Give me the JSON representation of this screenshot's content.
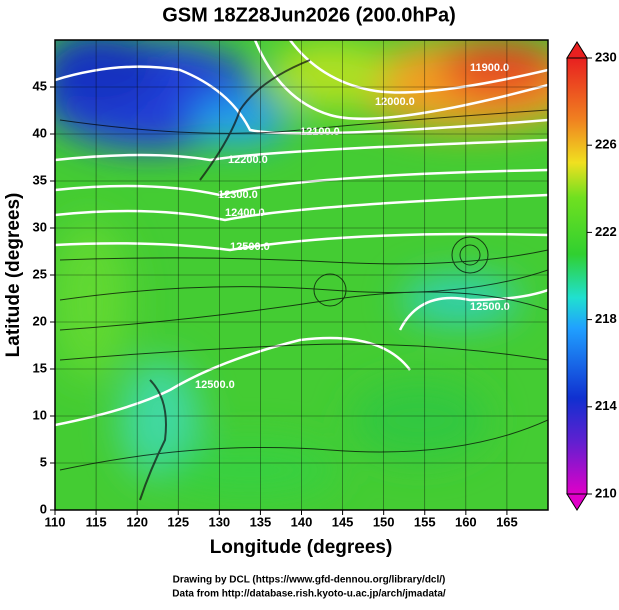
{
  "chart_data": {
    "type": "map",
    "title": "GSM 18Z28Jun2026 (200.0hPa)",
    "x_label": "Longitude (degrees)",
    "y_label": "Latitude  (degrees)",
    "xlim": [
      110,
      170
    ],
    "xticks": [
      110,
      115,
      120,
      125,
      130,
      135,
      140,
      145,
      150,
      155,
      160,
      165
    ],
    "ylim": [
      0,
      50
    ],
    "yticks": [
      0,
      5,
      10,
      15,
      20,
      25,
      30,
      35,
      40,
      45
    ],
    "grid": true,
    "colorbar": {
      "lim": [
        210,
        230
      ],
      "ticks": [
        210,
        214,
        218,
        222,
        226,
        230
      ]
    },
    "contour_labels": [
      "11900.0",
      "12000.0",
      "12100.0",
      "12200.0",
      "12300.0",
      "12400.0",
      "12500.0",
      "12500.0",
      "12500.0"
    ],
    "credits": [
      "Drawing by DCL (https://www.gfd-dennou.org/library/dcl/)",
      "Data from http://database.rish.kyoto-u.ac.jp/arch/jmadata/"
    ]
  }
}
